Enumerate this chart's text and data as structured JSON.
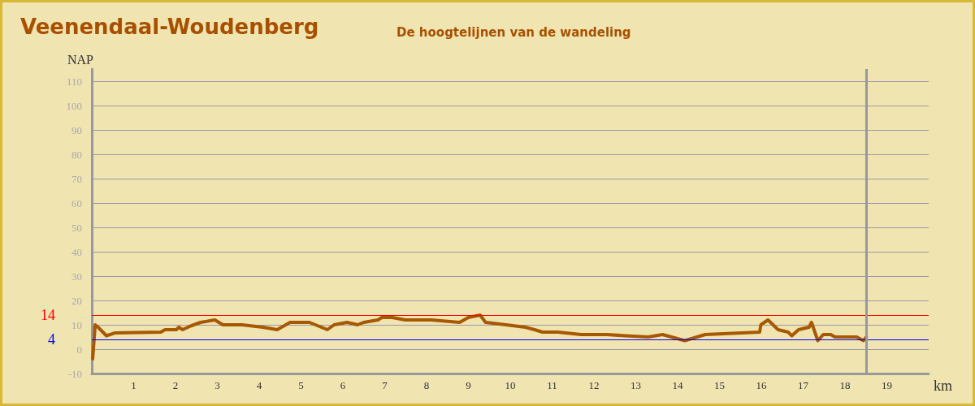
{
  "chart_data": {
    "type": "line",
    "title": "Veenendaal-Woudenberg",
    "subtitle": "De hoogtelijnen van de wandeling",
    "xlabel": "km",
    "ylabel": "NAP",
    "x": [
      0.02,
      0.08,
      0.15,
      0.35,
      0.56,
      1.65,
      1.75,
      2.02,
      2.08,
      2.17,
      2.36,
      2.6,
      2.94,
      3.13,
      3.59,
      4.09,
      4.43,
      4.74,
      5.2,
      5.63,
      5.79,
      6.1,
      6.35,
      6.5,
      6.84,
      6.93,
      7.18,
      7.49,
      8.11,
      8.79,
      9.0,
      9.28,
      9.41,
      9.9,
      10.36,
      10.58,
      10.77,
      11.14,
      11.69,
      12.31,
      12.75,
      13.3,
      13.64,
      14.17,
      14.66,
      15.96,
      15.99,
      16.16,
      16.4,
      16.64,
      16.73,
      16.89,
      17.14,
      17.2,
      17.35,
      17.48,
      17.66,
      17.76,
      18.28,
      18.44,
      18.51
    ],
    "series": [
      {
        "color": "#a85800",
        "values": [
          -4,
          10,
          9,
          5.5,
          6.7,
          7,
          8,
          8,
          9,
          8,
          9.5,
          11,
          12,
          10,
          10,
          9,
          8,
          11,
          11,
          8,
          10,
          11,
          10,
          11,
          12,
          13,
          13,
          12,
          12,
          11,
          13,
          14,
          11,
          10,
          9,
          8,
          7,
          7,
          6,
          6,
          5.5,
          5,
          6,
          3.5,
          6,
          7,
          10,
          12,
          8,
          7,
          5.5,
          8,
          9,
          11,
          3.5,
          6,
          6,
          5,
          5,
          3.5,
          5
        ]
      }
    ],
    "xlim": [
      0,
      20
    ],
    "xticks": [
      1,
      2,
      3,
      4,
      5,
      6,
      7,
      8,
      9,
      10,
      11,
      12,
      13,
      14,
      15,
      16,
      17,
      18,
      19
    ],
    "ylim": [
      -10,
      115
    ],
    "yticks": [
      -10,
      0,
      10,
      20,
      30,
      40,
      50,
      60,
      70,
      80,
      90,
      100,
      110
    ],
    "ref_lines": [
      {
        "axis": "y",
        "value": 14,
        "label": "14",
        "color": "#ff0000"
      },
      {
        "axis": "y",
        "value": 4,
        "label": "4",
        "color": "#0000ff"
      },
      {
        "axis": "x",
        "value": 18.5,
        "label": null,
        "color": "#999999"
      }
    ],
    "grid": "y",
    "marker": "none",
    "line_style": "solid"
  }
}
